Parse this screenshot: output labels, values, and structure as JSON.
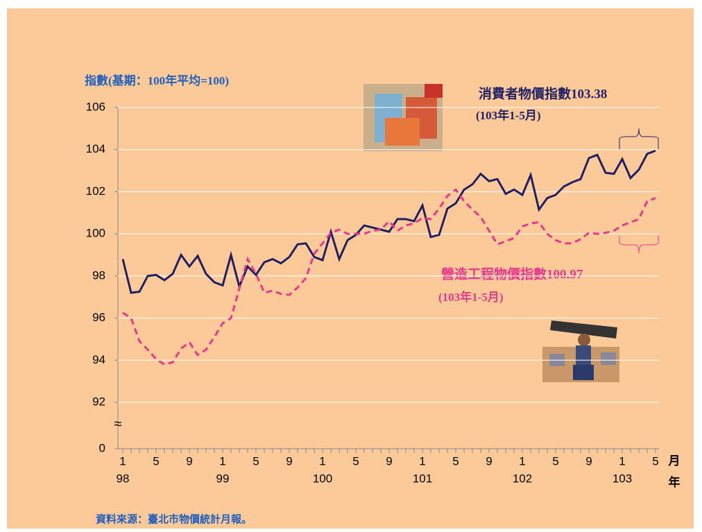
{
  "chart_data": {
    "type": "line",
    "y_axis_title": "指數(基期：100年平均=100)",
    "x_unit_month": "月",
    "x_unit_year": "年",
    "source": "資料來源：臺北市物價統計月報。",
    "annotations": [
      {
        "text": "消費者物價指數103.38",
        "note": "(103年1-5月)"
      },
      {
        "text": "營造工程物價指數100.97",
        "note": "(103年1-5月)"
      }
    ],
    "categories": [
      "1",
      null,
      null,
      null,
      "5",
      null,
      null,
      null,
      "9",
      null,
      null,
      null,
      "1",
      null,
      null,
      null,
      "5",
      null,
      null,
      null,
      "9",
      null,
      null,
      null,
      "1",
      null,
      null,
      null,
      "5",
      null,
      null,
      null,
      "9",
      null,
      null,
      null,
      "1",
      null,
      null,
      null,
      "5",
      null,
      null,
      null,
      "9",
      null,
      null,
      null,
      "1",
      null,
      null,
      null,
      "5",
      null,
      null,
      null,
      "9",
      null,
      null,
      null,
      "1",
      null,
      null,
      null,
      "5"
    ],
    "category_groups": [
      {
        "label": "98",
        "count": 12
      },
      {
        "label": "99",
        "count": 12
      },
      {
        "label": "100",
        "count": 12
      },
      {
        "label": "101",
        "count": 12
      },
      {
        "label": "102",
        "count": 12
      },
      {
        "label": "103",
        "count": 5
      }
    ],
    "series": [
      {
        "color": "#1f1f66",
        "dash": false,
        "values": [
          98.8,
          97.2,
          97.25,
          98.0,
          98.05,
          97.8,
          98.1,
          99.0,
          98.45,
          98.95,
          98.1,
          97.7,
          97.55,
          99.0,
          97.5,
          98.45,
          98.05,
          98.65,
          98.8,
          98.6,
          98.9,
          99.5,
          99.55,
          98.9,
          98.75,
          100.1,
          98.8,
          99.7,
          99.95,
          100.4,
          100.3,
          100.2,
          100.1,
          100.7,
          100.7,
          100.6,
          101.35,
          99.85,
          99.95,
          101.2,
          101.45,
          102.1,
          102.35,
          102.85,
          102.5,
          102.6,
          101.9,
          102.1,
          101.85,
          102.8,
          101.15,
          101.7,
          101.85,
          102.25,
          102.45,
          102.6,
          103.6,
          103.75,
          102.9,
          102.85,
          103.55,
          102.65,
          103.05,
          103.8,
          103.95
        ]
      },
      {
        "color": "#e8388c",
        "dash": true,
        "values": [
          96.25,
          96.0,
          94.9,
          94.5,
          94.05,
          93.8,
          93.9,
          94.55,
          94.85,
          94.25,
          94.5,
          95.1,
          95.75,
          96.0,
          97.4,
          98.8,
          98.1,
          97.2,
          97.3,
          97.15,
          97.1,
          97.45,
          97.9,
          99.05,
          99.55,
          100.05,
          100.2,
          100.0,
          100.0,
          100.0,
          100.15,
          100.2,
          100.6,
          100.15,
          100.4,
          100.5,
          100.75,
          100.7,
          101.2,
          101.8,
          102.1,
          101.55,
          101.15,
          100.8,
          100.15,
          99.5,
          99.65,
          99.8,
          100.35,
          100.5,
          100.55,
          100.0,
          99.7,
          99.55,
          99.55,
          99.75,
          100.05,
          100.0,
          100.05,
          100.15,
          100.4,
          100.55,
          100.7,
          101.55,
          101.7
        ]
      }
    ],
    "ylim": [
      92,
      106
    ],
    "yticks": [
      92,
      94,
      96,
      98,
      100,
      102,
      104,
      106
    ],
    "y_origin_tick": 0,
    "y_break_symbol": "≈",
    "grid": true
  }
}
